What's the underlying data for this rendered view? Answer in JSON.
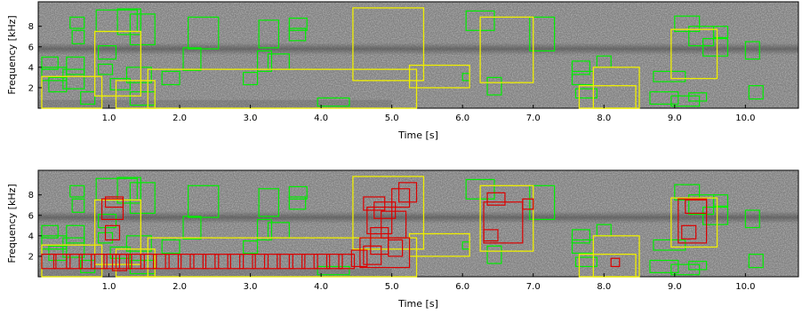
{
  "colors": {
    "background": "#808080",
    "green_box": "#00ee00",
    "yellow_box": "#eeee00",
    "red_box": "#dd0000"
  },
  "chart_data": [
    {
      "type": "spectrogram_with_detections",
      "xlabel": "Time  [s]",
      "ylabel": "Frequency  [kHz]",
      "xlim": [
        0.0,
        10.75
      ],
      "ylim": [
        0.0,
        10.4
      ],
      "xticks": [
        1.0,
        2.0,
        3.0,
        4.0,
        5.0,
        6.0,
        7.0,
        8.0,
        9.0,
        10.0
      ],
      "xtick_labels": [
        "1.0",
        "2.0",
        "3.0",
        "4.0",
        "5.0",
        "6.0",
        "7.0",
        "8.0",
        "9.0",
        "10.0"
      ],
      "yticks": [
        2,
        4,
        6,
        8
      ],
      "ytick_labels": [
        "2",
        "4",
        "6",
        "8"
      ],
      "green_boxes": [
        {
          "t0": 0.05,
          "t1": 0.28,
          "f0": 3.8,
          "f1": 5.0
        },
        {
          "t0": 0.05,
          "t1": 0.4,
          "f0": 2.7,
          "f1": 4.0
        },
        {
          "t0": 0.15,
          "t1": 0.4,
          "f0": 1.6,
          "f1": 3.0
        },
        {
          "t0": 0.35,
          "t1": 0.65,
          "f0": 1.9,
          "f1": 3.8
        },
        {
          "t0": 0.4,
          "t1": 0.65,
          "f0": 3.3,
          "f1": 5.0
        },
        {
          "t0": 0.48,
          "t1": 0.65,
          "f0": 6.3,
          "f1": 7.6
        },
        {
          "t0": 0.6,
          "t1": 0.8,
          "f0": 0.4,
          "f1": 1.6
        },
        {
          "t0": 0.82,
          "t1": 1.4,
          "f0": 7.5,
          "f1": 9.6
        },
        {
          "t0": 0.85,
          "t1": 1.1,
          "f0": 4.8,
          "f1": 6.1
        },
        {
          "t0": 0.85,
          "t1": 1.05,
          "f0": 3.3,
          "f1": 4.3
        },
        {
          "t0": 1.12,
          "t1": 1.45,
          "f0": 7.2,
          "f1": 9.7
        },
        {
          "t0": 1.3,
          "t1": 1.65,
          "f0": 6.2,
          "f1": 9.2
        },
        {
          "t0": 1.02,
          "t1": 1.3,
          "f0": 1.8,
          "f1": 2.9
        },
        {
          "t0": 1.25,
          "t1": 1.6,
          "f0": 2.5,
          "f1": 4.0
        },
        {
          "t0": 1.3,
          "t1": 1.65,
          "f0": 0.3,
          "f1": 1.6
        },
        {
          "t0": 1.75,
          "t1": 2.0,
          "f0": 2.3,
          "f1": 3.6
        },
        {
          "t0": 2.05,
          "t1": 2.3,
          "f0": 3.7,
          "f1": 5.9
        },
        {
          "t0": 2.12,
          "t1": 2.55,
          "f0": 5.8,
          "f1": 8.9
        },
        {
          "t0": 2.9,
          "t1": 3.1,
          "f0": 2.3,
          "f1": 3.5
        },
        {
          "t0": 3.1,
          "t1": 3.3,
          "f0": 3.6,
          "f1": 5.6
        },
        {
          "t0": 3.12,
          "t1": 3.4,
          "f0": 5.9,
          "f1": 8.6
        },
        {
          "t0": 3.25,
          "t1": 3.55,
          "f0": 3.8,
          "f1": 5.3
        },
        {
          "t0": 3.55,
          "t1": 3.78,
          "f0": 6.6,
          "f1": 7.8
        },
        {
          "t0": 3.55,
          "t1": 3.8,
          "f0": 7.6,
          "f1": 8.8
        },
        {
          "t0": 3.95,
          "t1": 4.4,
          "f0": 0.2,
          "f1": 1.0
        },
        {
          "t0": 6.05,
          "t1": 6.45,
          "f0": 7.6,
          "f1": 9.5
        },
        {
          "t0": 6.0,
          "t1": 6.1,
          "f0": 2.7,
          "f1": 3.4
        },
        {
          "t0": 6.35,
          "t1": 6.55,
          "f0": 1.3,
          "f1": 3.0
        },
        {
          "t0": 6.95,
          "t1": 7.3,
          "f0": 5.6,
          "f1": 8.9
        },
        {
          "t0": 7.55,
          "t1": 7.8,
          "f0": 3.3,
          "f1": 4.6
        },
        {
          "t0": 7.55,
          "t1": 7.85,
          "f0": 2.3,
          "f1": 3.6
        },
        {
          "t0": 7.6,
          "t1": 7.9,
          "f0": 1.0,
          "f1": 1.9
        },
        {
          "t0": 7.9,
          "t1": 8.1,
          "f0": 4.0,
          "f1": 5.1
        },
        {
          "t0": 8.65,
          "t1": 9.05,
          "f0": 0.4,
          "f1": 1.6
        },
        {
          "t0": 8.7,
          "t1": 9.15,
          "f0": 2.6,
          "f1": 3.6
        },
        {
          "t0": 8.95,
          "t1": 9.35,
          "f0": 0.2,
          "f1": 1.2
        },
        {
          "t0": 9.2,
          "t1": 9.45,
          "f0": 0.7,
          "f1": 1.5
        },
        {
          "t0": 9.55,
          "t1": 9.75,
          "f0": 6.9,
          "f1": 8.0
        },
        {
          "t0": 9.0,
          "t1": 9.35,
          "f0": 7.5,
          "f1": 9.0
        },
        {
          "t0": 9.2,
          "t1": 9.55,
          "f0": 6.1,
          "f1": 8.0
        },
        {
          "t0": 9.4,
          "t1": 9.75,
          "f0": 5.1,
          "f1": 6.8
        },
        {
          "t0": 10.0,
          "t1": 10.2,
          "f0": 4.8,
          "f1": 6.5
        },
        {
          "t0": 10.05,
          "t1": 10.25,
          "f0": 0.9,
          "f1": 2.2
        },
        {
          "t0": 0.45,
          "t1": 0.65,
          "f0": 7.8,
          "f1": 8.9
        }
      ],
      "yellow_boxes": [
        {
          "t0": 0.05,
          "t1": 0.9,
          "f0": 0.0,
          "f1": 3.1
        },
        {
          "t0": 0.8,
          "t1": 1.45,
          "f0": 1.2,
          "f1": 7.5
        },
        {
          "t0": 1.1,
          "t1": 1.65,
          "f0": 0.0,
          "f1": 2.7
        },
        {
          "t0": 1.55,
          "t1": 5.35,
          "f0": 0.0,
          "f1": 3.8
        },
        {
          "t0": 4.45,
          "t1": 5.45,
          "f0": 2.7,
          "f1": 9.8
        },
        {
          "t0": 5.25,
          "t1": 6.1,
          "f0": 2.0,
          "f1": 4.2
        },
        {
          "t0": 6.25,
          "t1": 7.0,
          "f0": 2.5,
          "f1": 8.9
        },
        {
          "t0": 7.85,
          "t1": 8.5,
          "f0": 0.0,
          "f1": 4.0
        },
        {
          "t0": 7.65,
          "t1": 8.45,
          "f0": 0.0,
          "f1": 2.2
        },
        {
          "t0": 8.95,
          "t1": 9.6,
          "f0": 2.9,
          "f1": 7.7
        }
      ],
      "red_boxes": [
        {
          "t0": 0.05,
          "t1": 0.25,
          "f0": 0.8,
          "f1": 2.2
        },
        {
          "t0": 0.22,
          "t1": 0.45,
          "f0": 0.8,
          "f1": 2.2
        },
        {
          "t0": 0.4,
          "t1": 0.62,
          "f0": 0.8,
          "f1": 2.2
        },
        {
          "t0": 0.58,
          "t1": 0.8,
          "f0": 0.8,
          "f1": 2.2
        },
        {
          "t0": 0.75,
          "t1": 0.97,
          "f0": 0.8,
          "f1": 2.2
        },
        {
          "t0": 0.93,
          "t1": 1.15,
          "f0": 0.8,
          "f1": 2.2
        },
        {
          "t0": 1.1,
          "t1": 1.32,
          "f0": 0.8,
          "f1": 2.2
        },
        {
          "t0": 1.28,
          "t1": 1.5,
          "f0": 0.8,
          "f1": 2.2
        },
        {
          "t0": 1.45,
          "t1": 1.67,
          "f0": 0.8,
          "f1": 2.2
        },
        {
          "t0": 1.63,
          "t1": 1.85,
          "f0": 0.8,
          "f1": 2.2
        },
        {
          "t0": 1.8,
          "t1": 2.02,
          "f0": 0.8,
          "f1": 2.2
        },
        {
          "t0": 1.98,
          "t1": 2.2,
          "f0": 0.8,
          "f1": 2.2
        },
        {
          "t0": 2.15,
          "t1": 2.37,
          "f0": 0.8,
          "f1": 2.2
        },
        {
          "t0": 2.33,
          "t1": 2.55,
          "f0": 0.8,
          "f1": 2.2
        },
        {
          "t0": 2.5,
          "t1": 2.72,
          "f0": 0.8,
          "f1": 2.2
        },
        {
          "t0": 2.68,
          "t1": 2.9,
          "f0": 0.8,
          "f1": 2.2
        },
        {
          "t0": 2.85,
          "t1": 3.07,
          "f0": 0.8,
          "f1": 2.2
        },
        {
          "t0": 3.03,
          "t1": 3.25,
          "f0": 0.8,
          "f1": 2.2
        },
        {
          "t0": 3.2,
          "t1": 3.42,
          "f0": 0.8,
          "f1": 2.2
        },
        {
          "t0": 3.38,
          "t1": 3.6,
          "f0": 0.8,
          "f1": 2.2
        },
        {
          "t0": 3.55,
          "t1": 3.77,
          "f0": 0.8,
          "f1": 2.2
        },
        {
          "t0": 3.73,
          "t1": 3.95,
          "f0": 0.8,
          "f1": 2.2
        },
        {
          "t0": 3.9,
          "t1": 4.12,
          "f0": 0.8,
          "f1": 2.2
        },
        {
          "t0": 4.08,
          "t1": 4.3,
          "f0": 0.8,
          "f1": 2.2
        },
        {
          "t0": 4.25,
          "t1": 4.47,
          "f0": 0.8,
          "f1": 2.2
        },
        {
          "t0": 4.43,
          "t1": 4.65,
          "f0": 1.0,
          "f1": 2.6
        },
        {
          "t0": 4.6,
          "t1": 4.85,
          "f0": 1.2,
          "f1": 3.0
        },
        {
          "t0": 4.55,
          "t1": 5.25,
          "f0": 0.9,
          "f1": 3.8
        },
        {
          "t0": 0.9,
          "t1": 1.2,
          "f0": 5.6,
          "f1": 7.6
        },
        {
          "t0": 0.95,
          "t1": 1.15,
          "f0": 3.6,
          "f1": 5.0
        },
        {
          "t0": 0.95,
          "t1": 1.2,
          "f0": 6.8,
          "f1": 7.8
        },
        {
          "t0": 1.05,
          "t1": 1.25,
          "f0": 0.6,
          "f1": 2.2
        },
        {
          "t0": 4.6,
          "t1": 4.9,
          "f0": 6.5,
          "f1": 7.8
        },
        {
          "t0": 4.75,
          "t1": 5.05,
          "f0": 5.7,
          "f1": 7.3
        },
        {
          "t0": 4.65,
          "t1": 5.0,
          "f0": 4.2,
          "f1": 6.8
        },
        {
          "t0": 4.85,
          "t1": 5.2,
          "f0": 3.8,
          "f1": 6.4
        },
        {
          "t0": 5.0,
          "t1": 5.25,
          "f0": 6.8,
          "f1": 8.6
        },
        {
          "t0": 5.1,
          "t1": 5.35,
          "f0": 7.3,
          "f1": 9.2
        },
        {
          "t0": 4.7,
          "t1": 4.95,
          "f0": 2.2,
          "f1": 4.8
        },
        {
          "t0": 4.95,
          "t1": 5.15,
          "f0": 2.0,
          "f1": 3.6
        },
        {
          "t0": 6.35,
          "t1": 6.6,
          "f0": 7.0,
          "f1": 8.2
        },
        {
          "t0": 6.3,
          "t1": 6.85,
          "f0": 3.3,
          "f1": 7.3
        },
        {
          "t0": 6.3,
          "t1": 6.5,
          "f0": 3.5,
          "f1": 4.6
        },
        {
          "t0": 6.85,
          "t1": 7.0,
          "f0": 6.6,
          "f1": 7.6
        },
        {
          "t0": 8.1,
          "t1": 8.22,
          "f0": 1.0,
          "f1": 1.8
        },
        {
          "t0": 9.05,
          "t1": 9.45,
          "f0": 3.3,
          "f1": 7.6
        },
        {
          "t0": 9.15,
          "t1": 9.45,
          "f0": 6.2,
          "f1": 7.5
        },
        {
          "t0": 9.1,
          "t1": 9.3,
          "f0": 3.7,
          "f1": 5.0
        }
      ]
    }
  ]
}
